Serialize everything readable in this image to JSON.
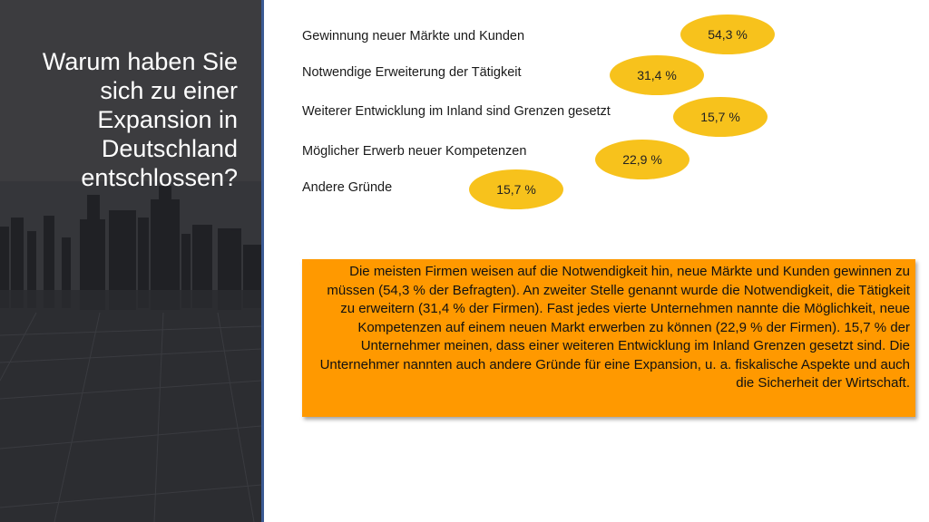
{
  "question": "Warum haben Sie sich zu einer Expansion in Deutschland entschlossen?",
  "reasons": [
    {
      "label": "Gewinnung neuer Märkte und Kunden",
      "value": "54,3 %"
    },
    {
      "label": "Notwendige Erweiterung der Tätigkeit",
      "value": "31,4 %"
    },
    {
      "label": "Weiterer Entwicklung im Inland sind Grenzen gesetzt",
      "value": "15,7 %"
    },
    {
      "label": "Möglicher Erwerb neuer Kompetenzen",
      "value": "22,9 %"
    },
    {
      "label": "Andere Gründe",
      "value": "15,7 %"
    }
  ],
  "summary": "Die meisten Firmen weisen auf die Notwendigkeit hin, neue Märkte und Kunden gewinnen zu müssen (54,3 % der Befragten). An zweiter Stelle genannt wurde die Notwendigkeit, die Tätigkeit zu erweitern (31,4 % der Firmen). Fast jedes vierte Unternehmen nannte die Möglichkeit, neue Kompetenzen auf einem neuen Markt erwerben zu können (22,9 % der Firmen). 15,7 % der Unternehmer meinen, dass einer weiteren Entwicklung im Inland Grenzen gesetzt sind. Die Unternehmer nannten auch andere Gründe für eine Expansion, u. a. fiskalische Aspekte und auch die Sicherheit der Wirtschaft.",
  "colors": {
    "bubble": "#f7c21c",
    "summary_bg": "#ff9900",
    "panel_border": "#3b5a93"
  }
}
